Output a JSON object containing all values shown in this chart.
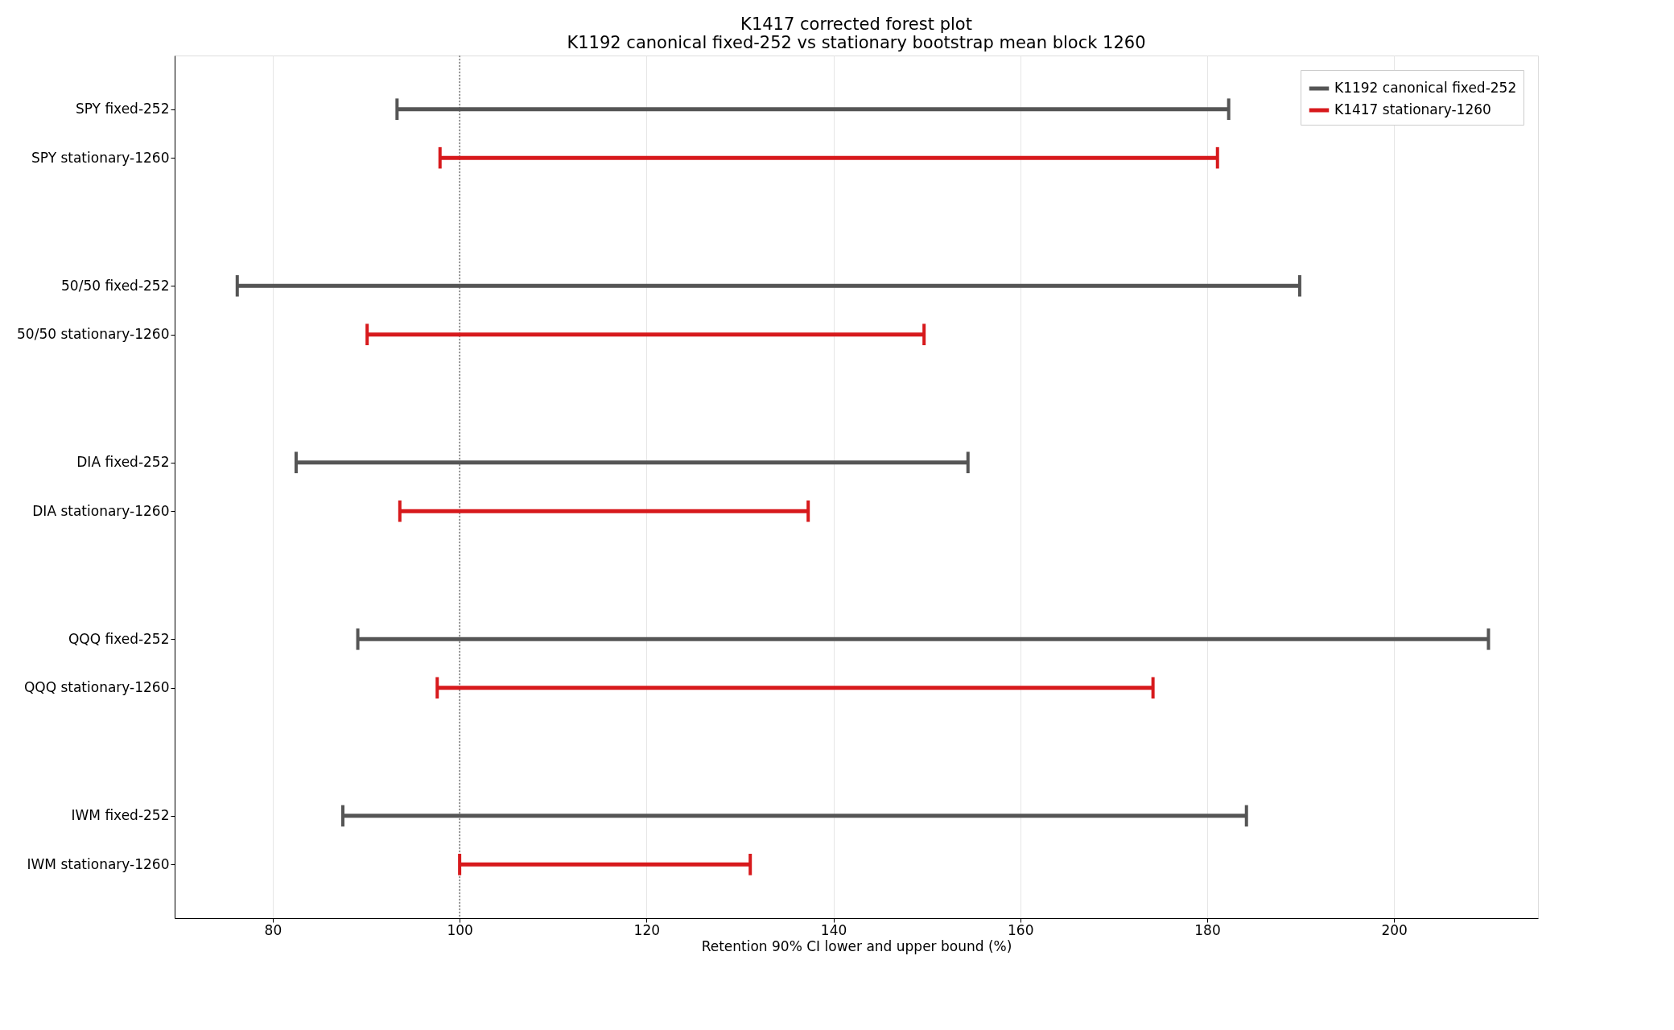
{
  "chart_data": {
    "type": "bar",
    "orientation": "horizontal",
    "title": "K1417 corrected forest plot",
    "subtitle": "K1192 canonical fixed-252 vs stationary bootstrap mean block 1260",
    "xlabel": "Retention 90% CI lower and upper bound (%)",
    "categories": [
      "SPY fixed-252",
      "SPY stationary-1260",
      "50/50 fixed-252",
      "50/50 stationary-1260",
      "DIA fixed-252",
      "DIA stationary-1260",
      "QQQ fixed-252",
      "QQQ stationary-1260",
      "IWM fixed-252",
      "IWM stationary-1260"
    ],
    "series": [
      {
        "name": "K1192 canonical fixed-252",
        "color": "#555555",
        "base": [
          93.3,
          null,
          76.2,
          null,
          82.5,
          null,
          89.1,
          null,
          87.5,
          null
        ],
        "values": [
          89.0,
          null,
          113.7,
          null,
          71.9,
          null,
          121.0,
          null,
          96.7,
          null
        ]
      },
      {
        "name": "K1417 stationary-1260",
        "color": "#d7191c",
        "base": [
          null,
          97.9,
          null,
          90.1,
          null,
          93.6,
          null,
          97.6,
          null,
          100.0
        ],
        "values": [
          null,
          83.2,
          null,
          59.6,
          null,
          43.7,
          null,
          76.6,
          null,
          31.1
        ]
      }
    ],
    "xlim": [
      69.5,
      215.4
    ],
    "xticks": [
      80,
      100,
      120,
      140,
      160,
      180,
      200
    ],
    "ref_lines": [
      {
        "axis": "x",
        "value": 100,
        "color": "#666666",
        "line_style": "dotted"
      }
    ],
    "grid": "x",
    "legend": "top right"
  }
}
